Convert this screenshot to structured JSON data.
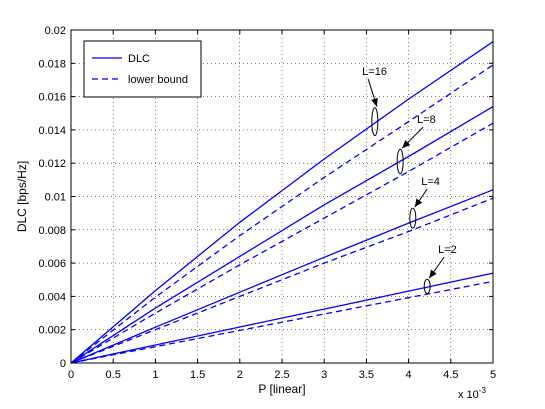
{
  "chart_data": {
    "type": "line",
    "xlabel": "P [linear]",
    "ylabel": "DLC [bps/Hz]",
    "x_scale_label": "x 10",
    "x_scale_exponent": "-3",
    "xlim": [
      0,
      5
    ],
    "ylim": [
      0,
      0.02
    ],
    "x_ticks": [
      0,
      0.5,
      1,
      1.5,
      2,
      2.5,
      3,
      3.5,
      4,
      4.5,
      5
    ],
    "x_tick_labels": [
      "0",
      "0.5",
      "1",
      "1.5",
      "2",
      "2.5",
      "3",
      "3.5",
      "4",
      "4.5",
      "5"
    ],
    "y_ticks": [
      0,
      0.002,
      0.004,
      0.006,
      0.008,
      0.01,
      0.012,
      0.014,
      0.016,
      0.018,
      0.02
    ],
    "y_tick_labels": [
      "0",
      "0.002",
      "0.004",
      "0.006",
      "0.008",
      "0.01",
      "0.012",
      "0.014",
      "0.016",
      "0.018",
      "0.02"
    ],
    "grid": true,
    "legend_placement": "top-left",
    "legend": [
      {
        "label": "DLC",
        "style": "solid"
      },
      {
        "label": "lower bound",
        "style": "dashed"
      }
    ],
    "color": "#0000ff",
    "series": [
      {
        "name": "DLC",
        "group": "L=16",
        "style": "solid",
        "x": [
          0,
          1,
          2,
          3,
          4,
          5
        ],
        "y": [
          0,
          0.00435,
          0.00845,
          0.01225,
          0.01585,
          0.0193
        ]
      },
      {
        "name": "lower bound",
        "group": "L=16",
        "style": "dashed",
        "x": [
          0,
          1,
          2,
          3,
          4,
          5
        ],
        "y": [
          0,
          0.00395,
          0.00765,
          0.01115,
          0.0145,
          0.0179
        ]
      },
      {
        "name": "DLC",
        "group": "L=8",
        "style": "solid",
        "x": [
          0,
          1,
          2,
          3,
          4,
          5
        ],
        "y": [
          0,
          0.0033,
          0.0064,
          0.0095,
          0.0124,
          0.0154
        ]
      },
      {
        "name": "lower bound",
        "group": "L=8",
        "style": "dashed",
        "x": [
          0,
          1,
          2,
          3,
          4,
          5
        ],
        "y": [
          0,
          0.003,
          0.0059,
          0.0087,
          0.0115,
          0.0144
        ]
      },
      {
        "name": "DLC",
        "group": "L=4",
        "style": "solid",
        "x": [
          0,
          1,
          2,
          3,
          4,
          5
        ],
        "y": [
          0,
          0.00215,
          0.00425,
          0.00635,
          0.0084,
          0.0104
        ]
      },
      {
        "name": "lower bound",
        "group": "L=4",
        "style": "dashed",
        "x": [
          0,
          1,
          2,
          3,
          4,
          5
        ],
        "y": [
          0,
          0.002,
          0.004,
          0.006,
          0.0079,
          0.0099
        ]
      },
      {
        "name": "DLC",
        "group": "L=2",
        "style": "solid",
        "x": [
          0,
          1,
          2,
          3,
          4,
          5
        ],
        "y": [
          0,
          0.00108,
          0.00216,
          0.00324,
          0.00432,
          0.0054
        ]
      },
      {
        "name": "lower bound",
        "group": "L=2",
        "style": "dashed",
        "x": [
          0,
          1,
          2,
          3,
          4,
          5
        ],
        "y": [
          0,
          0.00098,
          0.00196,
          0.00294,
          0.00392,
          0.0049
        ]
      }
    ],
    "annotations": [
      {
        "text": "L=16",
        "x": 3.6,
        "y": 0.0145,
        "text_x": 3.45,
        "text_y": 0.0173
      },
      {
        "text": "L=8",
        "x": 3.9,
        "y": 0.0121,
        "text_x": 4.1,
        "text_y": 0.0144
      },
      {
        "text": "L=4",
        "x": 4.05,
        "y": 0.0087,
        "text_x": 4.15,
        "text_y": 0.0107
      },
      {
        "text": "L=2",
        "x": 4.22,
        "y": 0.0046,
        "text_x": 4.35,
        "text_y": 0.0066
      }
    ]
  }
}
